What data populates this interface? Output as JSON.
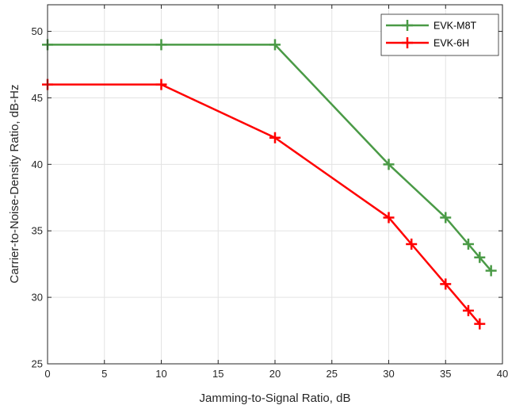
{
  "chart_data": {
    "type": "line",
    "title": "",
    "xlabel": "Jamming-to-Signal Ratio, dB",
    "ylabel": "Carrier-to-Noise-Density Ratio, dB-Hz",
    "xlim": [
      0,
      40
    ],
    "ylim": [
      25,
      52
    ],
    "xticks": [
      0,
      5,
      10,
      15,
      20,
      25,
      30,
      35,
      40
    ],
    "yticks": [
      25,
      30,
      35,
      40,
      45,
      50
    ],
    "grid": true,
    "legend_position": "top-right",
    "series": [
      {
        "name": "EVK-M8T",
        "color": "#4a9a46",
        "marker": "+",
        "x": [
          0,
          10,
          20,
          30,
          35,
          37,
          38,
          39
        ],
        "y": [
          49,
          49,
          49,
          40,
          36,
          34,
          33,
          32
        ]
      },
      {
        "name": "EVK-6H",
        "color": "#ff0000",
        "marker": "+",
        "x": [
          0,
          10,
          20,
          30,
          32,
          35,
          37,
          38
        ],
        "y": [
          46,
          46,
          42,
          36,
          34,
          31,
          29,
          28
        ]
      }
    ]
  }
}
